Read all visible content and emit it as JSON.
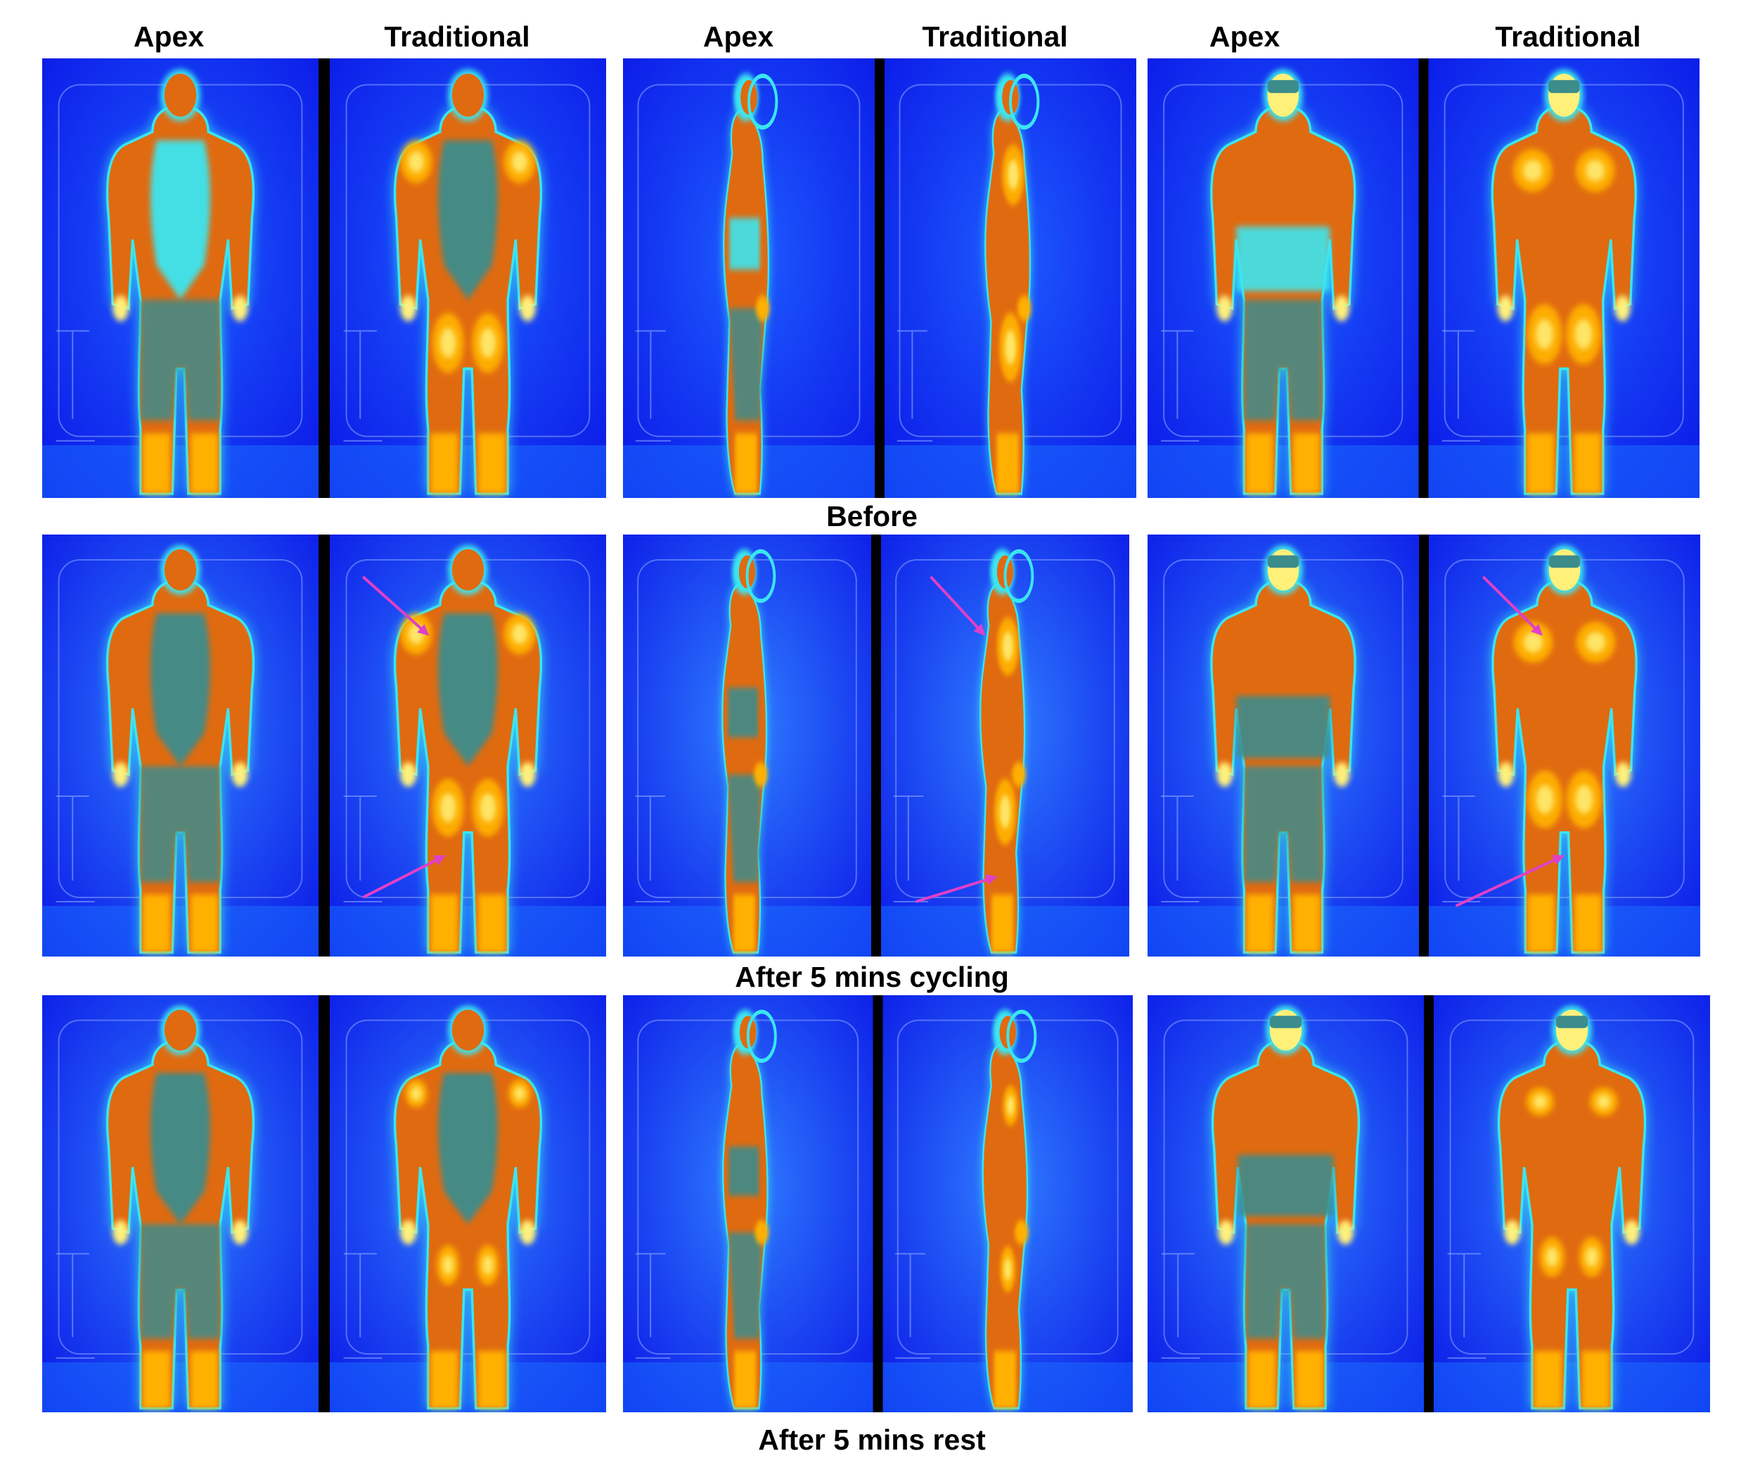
{
  "column_headers": {
    "front_left": "Apex",
    "front_right": "Traditional",
    "side_left": "Apex",
    "side_right": "Traditional",
    "back_left": "Apex",
    "back_right": "Traditional"
  },
  "rows": [
    {
      "label": "Before"
    },
    {
      "label": "After 5 mins cycling"
    },
    {
      "label": "After 5 mins rest"
    }
  ],
  "colors": {
    "background_cold": "#0a16e6",
    "background_mid": "#1e5cff",
    "halo_cyan": "#3ae6f0",
    "suit_cool": "#3c8c8c",
    "suit_warm": "#e06a10",
    "suit_hot": "#ffb000",
    "hotspot": "#fff07a",
    "arrow": "#e040c8"
  }
}
